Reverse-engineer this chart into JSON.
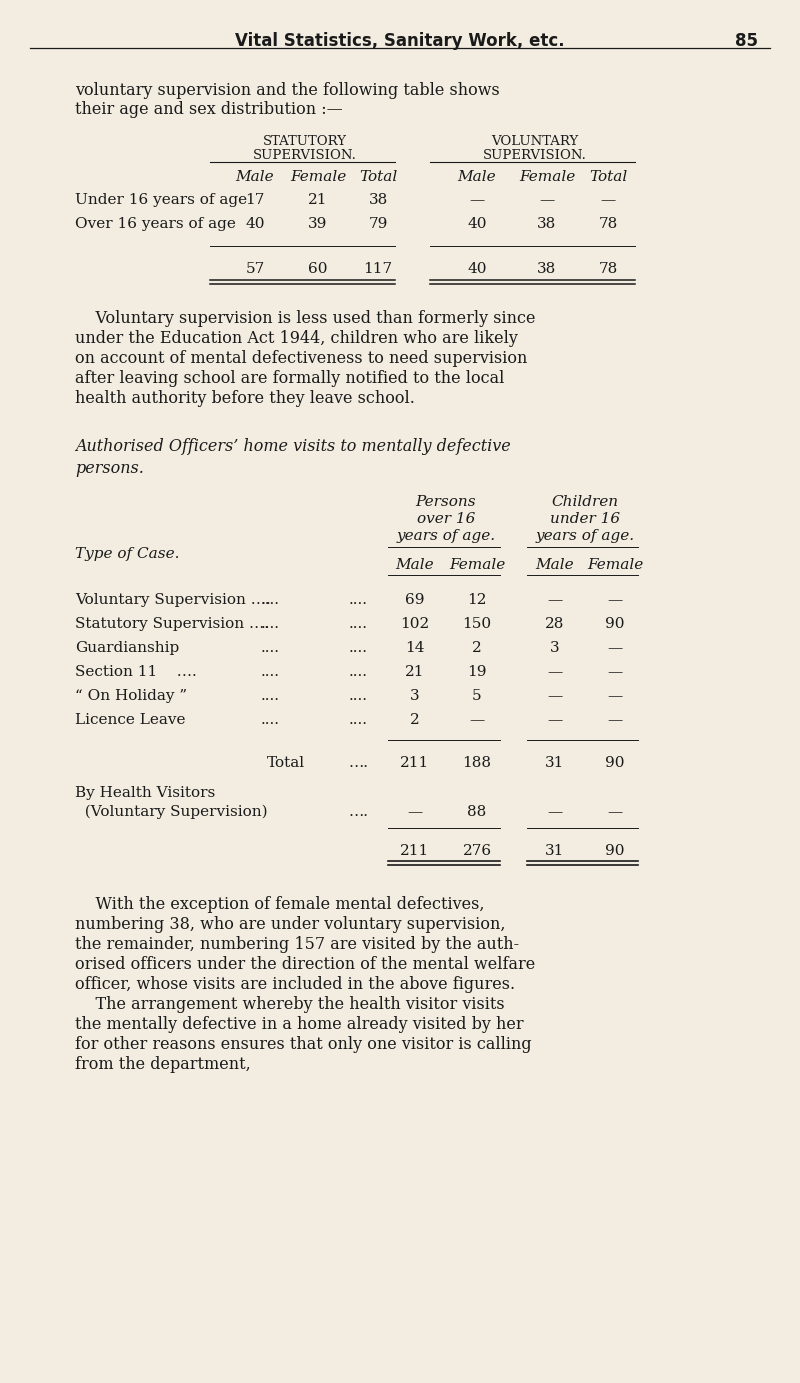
{
  "bg_color": "#f2ede0",
  "text_color": "#1a1a1a",
  "page_header": "Vital Statistics, Sanitary Work, etc.",
  "page_number": "85",
  "t1_stat_header": [
    "STATUTORY",
    "SUPERVISION."
  ],
  "t1_vol_header": [
    "VOLUNTARY",
    "SUPERVISION."
  ],
  "t1_col_labels": [
    "Male",
    "Female",
    "Total"
  ],
  "t1_row_labels": [
    "Under 16 years of age",
    "Over 16 years of age"
  ],
  "t1_stat_data": [
    [
      "17",
      "21",
      "38"
    ],
    [
      "40",
      "39",
      "79"
    ]
  ],
  "t1_vol_data": [
    [
      "—",
      "—",
      "—"
    ],
    [
      "40",
      "38",
      "78"
    ]
  ],
  "t1_stat_tot": [
    "57",
    "60",
    "117"
  ],
  "t1_vol_tot": [
    "40",
    "38",
    "78"
  ],
  "para1_lines": [
    "    Voluntary supervision is less used than formerly since",
    "under the Education Act 1944, children who are likely",
    "on account of mental defectiveness to need supervision",
    "after leaving school are formally notified to the local",
    "health authority before they leave school."
  ],
  "italic_heading_lines": [
    "Authorised Officers’ home visits to mentally defective",
    "persons."
  ],
  "t2_persons_header": [
    "Persons",
    "over 16",
    "years of age."
  ],
  "t2_children_header": [
    "Children",
    "under 16",
    "years of age."
  ],
  "t2_type_label": "Type of Case.",
  "t2_col_labels": [
    "Male",
    "Female",
    "Male",
    "Female"
  ],
  "t2_rows": [
    [
      "Voluntary Supervision ….",
      "….",
      "69",
      "12",
      "—",
      "—"
    ],
    [
      "Statutory Supervision ….",
      "….",
      "102",
      "150",
      "28",
      "90"
    ],
    [
      "Guardianship",
      "….",
      "14",
      "2",
      "3",
      "—"
    ],
    [
      "Section 11    ….",
      "….",
      "21",
      "19",
      "—",
      "—"
    ],
    [
      "“ On Holiday ”",
      "….",
      "3",
      "5",
      "—",
      "—"
    ],
    [
      "Licence Leave",
      "….",
      "2",
      "—",
      "—",
      "—"
    ]
  ],
  "t2_total_label": "Total",
  "t2_total_dots": "….",
  "t2_total_vals": [
    "211",
    "188",
    "31",
    "90"
  ],
  "t2_hv_label1": "By Health Visitors",
  "t2_hv_label2": "  (Voluntary Supervision)",
  "t2_hv_dots": "….",
  "t2_hv_vals": [
    "—",
    "88",
    "—",
    "—"
  ],
  "t2_final_vals": [
    "211",
    "276",
    "31",
    "90"
  ],
  "para2_lines": [
    "    With the exception of female mental defectives,",
    "numbering 38, who are under voluntary supervision,",
    "the remainder, numbering 157 are visited by the auth-",
    "orised officers under the direction of the mental welfare",
    "officer, whose visits are included in the above figures.",
    "    The arrangement whereby the health visitor visits",
    "the mentally defective in a home already visited by her",
    "for other reasons ensures that only one visitor is calling",
    "from the department,"
  ]
}
